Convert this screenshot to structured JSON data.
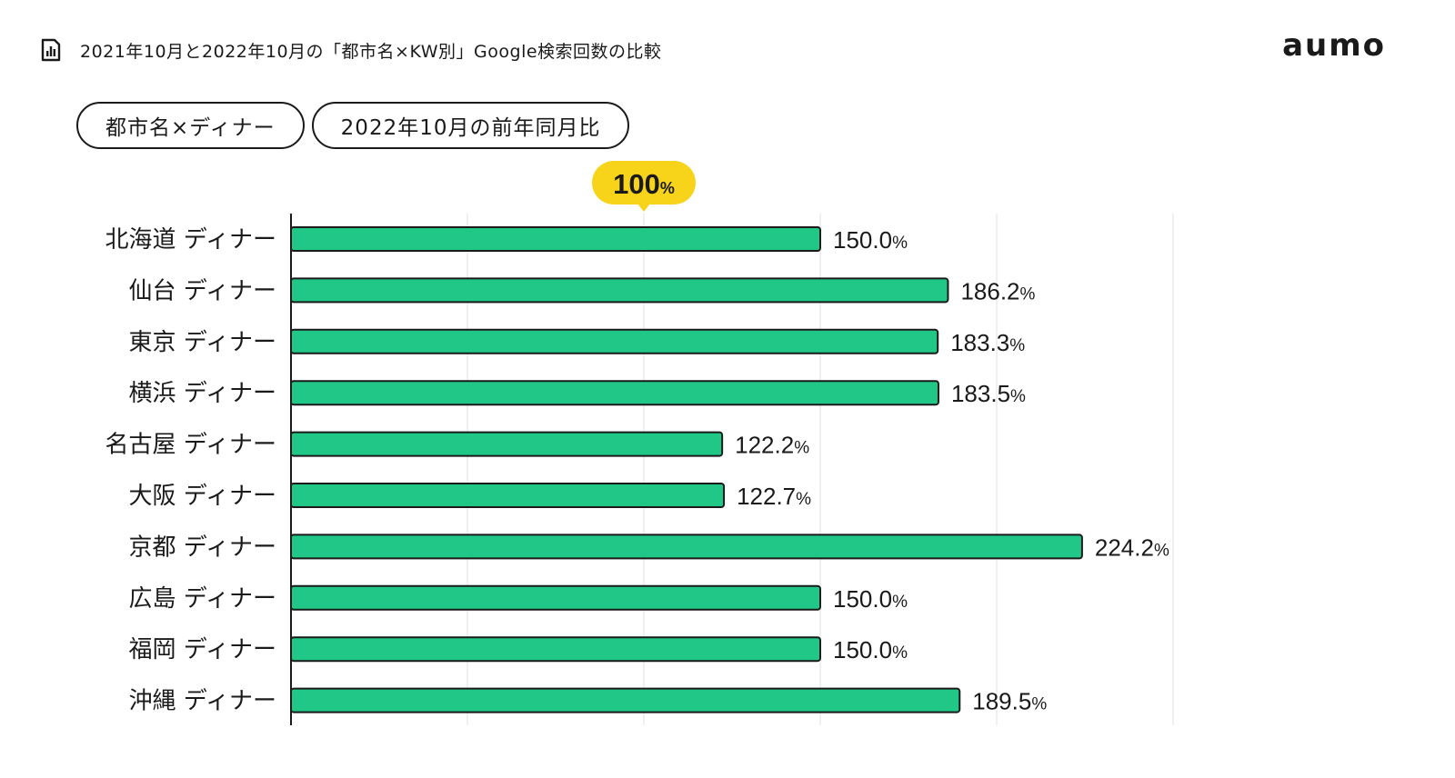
{
  "header": {
    "title": "2021年10月と2022年10月の「都市名×KW別」Google検索回数の比較",
    "icon": "bar-chart-document-icon"
  },
  "brand": {
    "logo_text": "aumo"
  },
  "filters": [
    {
      "label": "都市名×ディナー"
    },
    {
      "label": "2022年10月の前年同月比"
    }
  ],
  "chart_data": {
    "type": "bar",
    "orientation": "horizontal",
    "title": "",
    "xlabel": "",
    "ylabel": "",
    "categories": [
      "北海道 ディナー",
      "仙台 ディナー",
      "東京 ディナー",
      "横浜 ディナー",
      "名古屋 ディナー",
      "大阪 ディナー",
      "京都 ディナー",
      "広島 ディナー",
      "福岡 ディナー",
      "沖縄 ディナー"
    ],
    "values": [
      150.0,
      186.2,
      183.3,
      183.5,
      122.2,
      122.7,
      224.2,
      150.0,
      150.0,
      189.5
    ],
    "value_labels": [
      "150.0",
      "186.2",
      "183.3",
      "183.5",
      "122.2",
      "122.7",
      "224.2",
      "150.0",
      "150.0",
      "189.5"
    ],
    "value_unit": "%",
    "xlim": [
      0,
      250
    ],
    "grid": true,
    "reference_line": {
      "value": 100,
      "label": "100",
      "unit": "%"
    },
    "colors": {
      "bar_fill": "#20c787",
      "bar_stroke": "#1a1a1a",
      "reference_badge": "#f7d31a",
      "grid": "#e2e2e2",
      "axis": "#1a1a1a",
      "text": "#1a1a1a"
    }
  }
}
